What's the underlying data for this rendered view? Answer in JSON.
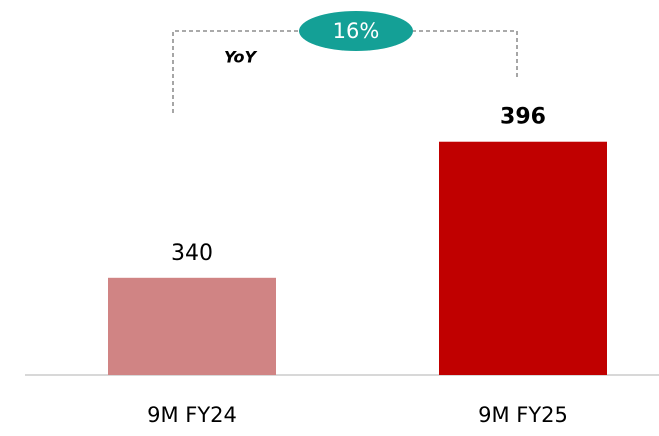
{
  "chart_data": {
    "type": "bar",
    "categories": [
      "9M FY24",
      "9M FY25"
    ],
    "values": [
      340,
      396
    ],
    "colors": [
      "#d08484",
      "#c00000"
    ],
    "ylim": [
      300,
      400
    ],
    "annotations": [
      "16%",
      "YoY"
    ]
  }
}
